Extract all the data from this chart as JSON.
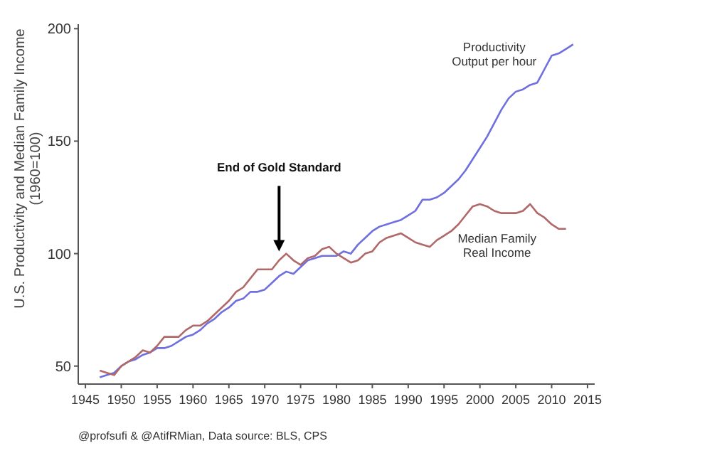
{
  "chart_data": {
    "type": "line",
    "ylabel": "U.S. Productivity and Median Family Income\n(1960=100)",
    "xlim": [
      1944,
      2016
    ],
    "ylim": [
      42,
      202
    ],
    "xticks": [
      1945,
      1950,
      1955,
      1960,
      1965,
      1970,
      1975,
      1980,
      1985,
      1990,
      1995,
      2000,
      2005,
      2010,
      2015
    ],
    "yticks": [
      50,
      100,
      150,
      200
    ],
    "x": [
      1947,
      1948,
      1949,
      1950,
      1951,
      1952,
      1953,
      1954,
      1955,
      1956,
      1957,
      1958,
      1959,
      1960,
      1961,
      1962,
      1963,
      1964,
      1965,
      1966,
      1967,
      1968,
      1969,
      1970,
      1971,
      1972,
      1973,
      1974,
      1975,
      1976,
      1977,
      1978,
      1979,
      1980,
      1981,
      1982,
      1983,
      1984,
      1985,
      1986,
      1987,
      1988,
      1989,
      1990,
      1991,
      1992,
      1993,
      1994,
      1995,
      1996,
      1997,
      1998,
      1999,
      2000,
      2001,
      2002,
      2003,
      2004,
      2005,
      2006,
      2007,
      2008,
      2009,
      2010,
      2011,
      2012,
      2013
    ],
    "series": [
      {
        "name": "Productivity\nOutput per hour",
        "color": "#6f6fe0",
        "values": [
          45,
          46,
          47,
          50,
          52,
          53,
          55,
          56,
          58,
          58,
          59,
          61,
          63,
          64,
          66,
          69,
          71,
          74,
          76,
          79,
          80,
          83,
          83,
          84,
          87,
          90,
          92,
          91,
          94,
          97,
          98,
          99,
          99,
          99,
          101,
          100,
          104,
          107,
          110,
          112,
          113,
          114,
          115,
          117,
          119,
          124,
          124,
          125,
          127,
          130,
          133,
          137,
          142,
          147,
          152,
          158,
          164,
          169,
          172,
          173,
          175,
          176,
          182,
          188,
          189,
          191,
          193
        ]
      },
      {
        "name": "Median Family\nReal Income",
        "color": "#b06868",
        "values": [
          48,
          47,
          46,
          50,
          52,
          54,
          57,
          56,
          59,
          63,
          63,
          63,
          66,
          68,
          68,
          70,
          73,
          76,
          79,
          83,
          85,
          89,
          93,
          93,
          93,
          97,
          100,
          97,
          95,
          98,
          99,
          102,
          103,
          100,
          98,
          96,
          97,
          100,
          101,
          105,
          107,
          108,
          109,
          107,
          105,
          104,
          103,
          106,
          108,
          110,
          113,
          117,
          121,
          122,
          121,
          119,
          118,
          118,
          118,
          119,
          122,
          118,
          116,
          113,
          111,
          111,
          null
        ]
      }
    ],
    "annotations": [
      {
        "text": "End of Gold Standard",
        "x": 1972,
        "y": 101
      },
      "@profsufi & @AtifRMian, Data source: BLS, CPS"
    ]
  }
}
